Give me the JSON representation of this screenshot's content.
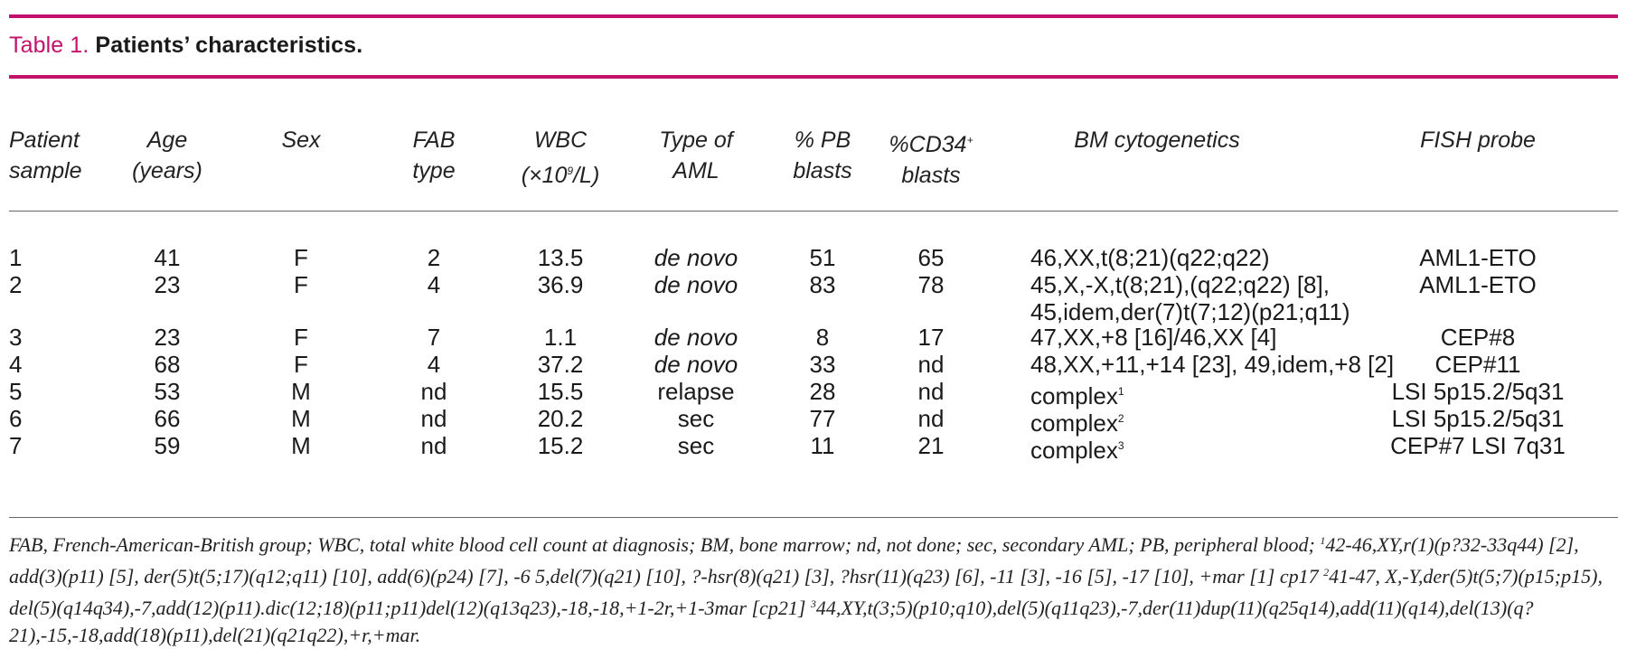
{
  "title": {
    "label": "Table 1.",
    "text": "Patients’ characteristics."
  },
  "headers": {
    "patient": [
      "Patient",
      "sample"
    ],
    "age": [
      "Age",
      "(years)"
    ],
    "sex": [
      "Sex"
    ],
    "fab": [
      "FAB",
      "type"
    ],
    "wbc_pre": "(×10",
    "wbc_sup": "9",
    "wbc_post": "/L)",
    "wbc_top": "WBC",
    "type": [
      "Type of",
      "AML"
    ],
    "pb": [
      "% PB",
      "blasts"
    ],
    "cd34_pre": "%CD34",
    "cd34_sup": "+",
    "cd34_bottom": "blasts",
    "bm": [
      "BM cytogenetics"
    ],
    "fish": [
      "FISH probe"
    ]
  },
  "rows": [
    {
      "patient": "1",
      "age": "41",
      "sex": "F",
      "fab": "2",
      "wbc": "13.5",
      "type": "de novo",
      "pb": "51",
      "cd34": "65",
      "bm": [
        "46,XX,t(8;21)(q22;q22)"
      ],
      "bm_sup": "",
      "fish": "AML1-ETO"
    },
    {
      "patient": "2",
      "age": "23",
      "sex": "F",
      "fab": "4",
      "wbc": "36.9",
      "type": "de novo",
      "pb": "83",
      "cd34": "78",
      "bm": [
        "45,X,-X,t(8;21),(q22;q22) [8],",
        "45,idem,der(7)t(7;12)(p21;q11)"
      ],
      "bm_sup": "",
      "fish": "AML1-ETO"
    },
    {
      "patient": "3",
      "age": "23",
      "sex": "F",
      "fab": "7",
      "wbc": "1.1",
      "type": "de novo",
      "pb": "8",
      "cd34": "17",
      "bm": [
        "47,XX,+8 [16]/46,XX [4]"
      ],
      "bm_sup": "",
      "fish": "CEP#8"
    },
    {
      "patient": "4",
      "age": "68",
      "sex": "F",
      "fab": "4",
      "wbc": "37.2",
      "type": "de novo",
      "pb": "33",
      "cd34": "nd",
      "bm": [
        "48,XX,+11,+14 [23], 49,idem,+8 [2]"
      ],
      "bm_sup": "",
      "fish": "CEP#11"
    },
    {
      "patient": "5",
      "age": "53",
      "sex": "M",
      "fab": "nd",
      "wbc": "15.5",
      "type": "relapse",
      "pb": "28",
      "cd34": "nd",
      "bm": [
        "complex"
      ],
      "bm_sup": "1",
      "fish": "LSI 5p15.2/5q31"
    },
    {
      "patient": "6",
      "age": "66",
      "sex": "M",
      "fab": "nd",
      "wbc": "20.2",
      "type": "sec",
      "pb": "77",
      "cd34": "nd",
      "bm": [
        "complex"
      ],
      "bm_sup": "2",
      "fish": "LSI 5p15.2/5q31"
    },
    {
      "patient": "7",
      "age": "59",
      "sex": "M",
      "fab": "nd",
      "wbc": "15.2",
      "type": "sec",
      "pb": "11",
      "cd34": "21",
      "bm": [
        "complex"
      ],
      "bm_sup": "3",
      "fish": "CEP#7 LSI 7q31"
    }
  ],
  "footnote": {
    "intro": "FAB, French-American-British group; WBC, total white blood cell count at diagnosis; BM, bone marrow;  nd, not done; sec, secondary AML; PB, peripheral blood; ",
    "n1_mark": "1",
    "n1_text": "42-46,XY,r(1)(p?32-33q44) [2], add(3)(p11) [5], der(5)t(5;17)(q12;q11) [10], add(6)(p24) [7], -6 5,del(7)(q21) [10], ?-hsr(8)(q21) [3], ?hsr(11)(q23) [6],  -11 [3], -16 [5],  -17 [10], +mar [1]  cp17 ",
    "n2_mark": "2",
    "n2_text": "41-47, X,-Y,der(5)t(5;7)(p15;p15), del(5)(q14q34),-7,add(12)(p11).dic(12;18)(p11;p11)del(12)(q13q23),-18,-18,+1-2r,+1-3mar [cp21] ",
    "n3_mark": "3",
    "n3_text": "44,XY,t(3;5)(p10;q10),del(5)(q11q23),-7,der(11)dup(11)(q25q14),add(11)(q14),del(13)(q?21),-15,-18,add(18)(p11),del(21)(q21q22),+r,+mar."
  }
}
